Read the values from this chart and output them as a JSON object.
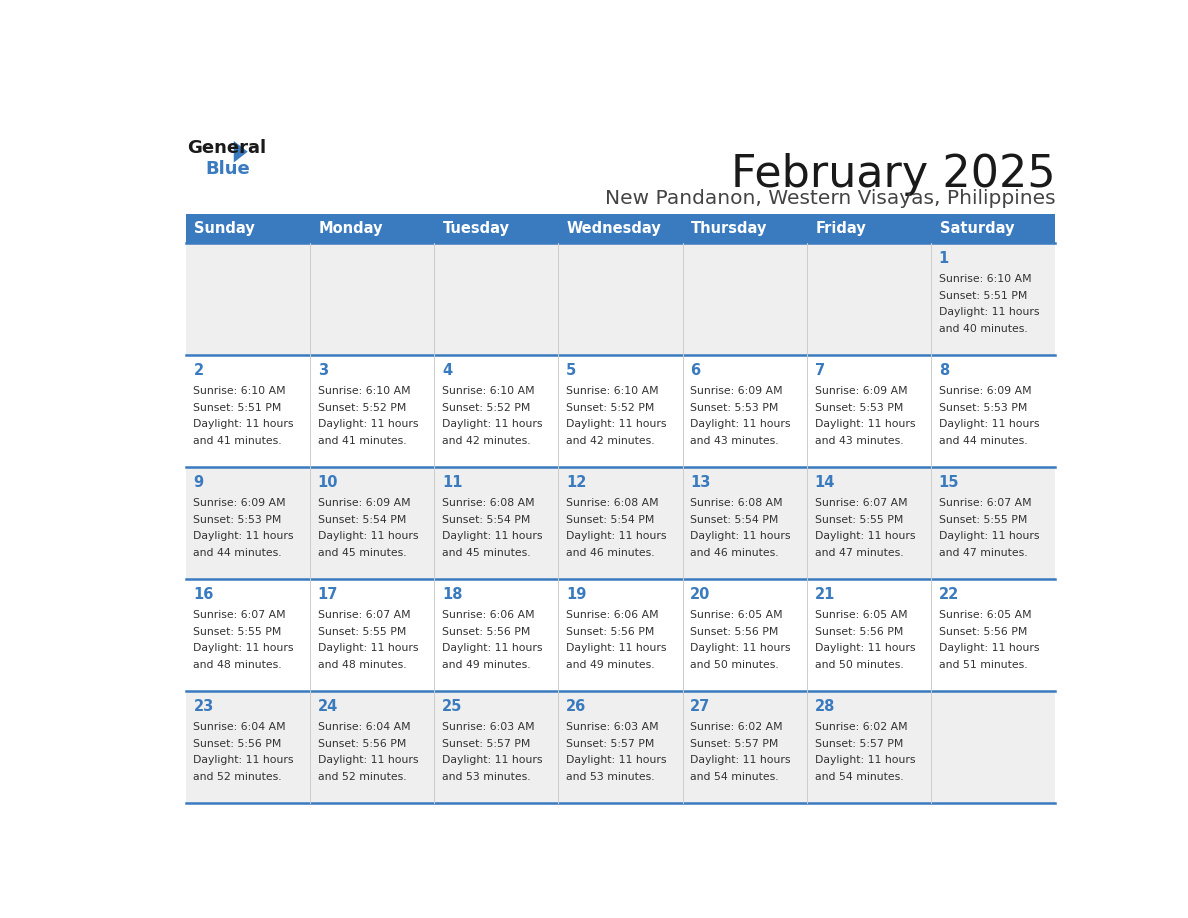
{
  "title": "February 2025",
  "subtitle": "New Pandanon, Western Visayas, Philippines",
  "days_of_week": [
    "Sunday",
    "Monday",
    "Tuesday",
    "Wednesday",
    "Thursday",
    "Friday",
    "Saturday"
  ],
  "header_bg": "#3a7abf",
  "header_text": "#ffffff",
  "row_bg_light": "#efefef",
  "row_bg_white": "#ffffff",
  "cell_text_color": "#333333",
  "day_number_color": "#3a7abf",
  "border_color": "#3a7abf",
  "figsize": [
    11.88,
    9.18
  ],
  "dpi": 100,
  "calendar_data": [
    [
      null,
      null,
      null,
      null,
      null,
      null,
      {
        "day": 1,
        "sunrise": "6:10 AM",
        "sunset": "5:51 PM",
        "daylight_h": "Daylight: 11 hours",
        "daylight_m": "and 40 minutes."
      }
    ],
    [
      {
        "day": 2,
        "sunrise": "6:10 AM",
        "sunset": "5:51 PM",
        "daylight_h": "Daylight: 11 hours",
        "daylight_m": "and 41 minutes."
      },
      {
        "day": 3,
        "sunrise": "6:10 AM",
        "sunset": "5:52 PM",
        "daylight_h": "Daylight: 11 hours",
        "daylight_m": "and 41 minutes."
      },
      {
        "day": 4,
        "sunrise": "6:10 AM",
        "sunset": "5:52 PM",
        "daylight_h": "Daylight: 11 hours",
        "daylight_m": "and 42 minutes."
      },
      {
        "day": 5,
        "sunrise": "6:10 AM",
        "sunset": "5:52 PM",
        "daylight_h": "Daylight: 11 hours",
        "daylight_m": "and 42 minutes."
      },
      {
        "day": 6,
        "sunrise": "6:09 AM",
        "sunset": "5:53 PM",
        "daylight_h": "Daylight: 11 hours",
        "daylight_m": "and 43 minutes."
      },
      {
        "day": 7,
        "sunrise": "6:09 AM",
        "sunset": "5:53 PM",
        "daylight_h": "Daylight: 11 hours",
        "daylight_m": "and 43 minutes."
      },
      {
        "day": 8,
        "sunrise": "6:09 AM",
        "sunset": "5:53 PM",
        "daylight_h": "Daylight: 11 hours",
        "daylight_m": "and 44 minutes."
      }
    ],
    [
      {
        "day": 9,
        "sunrise": "6:09 AM",
        "sunset": "5:53 PM",
        "daylight_h": "Daylight: 11 hours",
        "daylight_m": "and 44 minutes."
      },
      {
        "day": 10,
        "sunrise": "6:09 AM",
        "sunset": "5:54 PM",
        "daylight_h": "Daylight: 11 hours",
        "daylight_m": "and 45 minutes."
      },
      {
        "day": 11,
        "sunrise": "6:08 AM",
        "sunset": "5:54 PM",
        "daylight_h": "Daylight: 11 hours",
        "daylight_m": "and 45 minutes."
      },
      {
        "day": 12,
        "sunrise": "6:08 AM",
        "sunset": "5:54 PM",
        "daylight_h": "Daylight: 11 hours",
        "daylight_m": "and 46 minutes."
      },
      {
        "day": 13,
        "sunrise": "6:08 AM",
        "sunset": "5:54 PM",
        "daylight_h": "Daylight: 11 hours",
        "daylight_m": "and 46 minutes."
      },
      {
        "day": 14,
        "sunrise": "6:07 AM",
        "sunset": "5:55 PM",
        "daylight_h": "Daylight: 11 hours",
        "daylight_m": "and 47 minutes."
      },
      {
        "day": 15,
        "sunrise": "6:07 AM",
        "sunset": "5:55 PM",
        "daylight_h": "Daylight: 11 hours",
        "daylight_m": "and 47 minutes."
      }
    ],
    [
      {
        "day": 16,
        "sunrise": "6:07 AM",
        "sunset": "5:55 PM",
        "daylight_h": "Daylight: 11 hours",
        "daylight_m": "and 48 minutes."
      },
      {
        "day": 17,
        "sunrise": "6:07 AM",
        "sunset": "5:55 PM",
        "daylight_h": "Daylight: 11 hours",
        "daylight_m": "and 48 minutes."
      },
      {
        "day": 18,
        "sunrise": "6:06 AM",
        "sunset": "5:56 PM",
        "daylight_h": "Daylight: 11 hours",
        "daylight_m": "and 49 minutes."
      },
      {
        "day": 19,
        "sunrise": "6:06 AM",
        "sunset": "5:56 PM",
        "daylight_h": "Daylight: 11 hours",
        "daylight_m": "and 49 minutes."
      },
      {
        "day": 20,
        "sunrise": "6:05 AM",
        "sunset": "5:56 PM",
        "daylight_h": "Daylight: 11 hours",
        "daylight_m": "and 50 minutes."
      },
      {
        "day": 21,
        "sunrise": "6:05 AM",
        "sunset": "5:56 PM",
        "daylight_h": "Daylight: 11 hours",
        "daylight_m": "and 50 minutes."
      },
      {
        "day": 22,
        "sunrise": "6:05 AM",
        "sunset": "5:56 PM",
        "daylight_h": "Daylight: 11 hours",
        "daylight_m": "and 51 minutes."
      }
    ],
    [
      {
        "day": 23,
        "sunrise": "6:04 AM",
        "sunset": "5:56 PM",
        "daylight_h": "Daylight: 11 hours",
        "daylight_m": "and 52 minutes."
      },
      {
        "day": 24,
        "sunrise": "6:04 AM",
        "sunset": "5:56 PM",
        "daylight_h": "Daylight: 11 hours",
        "daylight_m": "and 52 minutes."
      },
      {
        "day": 25,
        "sunrise": "6:03 AM",
        "sunset": "5:57 PM",
        "daylight_h": "Daylight: 11 hours",
        "daylight_m": "and 53 minutes."
      },
      {
        "day": 26,
        "sunrise": "6:03 AM",
        "sunset": "5:57 PM",
        "daylight_h": "Daylight: 11 hours",
        "daylight_m": "and 53 minutes."
      },
      {
        "day": 27,
        "sunrise": "6:02 AM",
        "sunset": "5:57 PM",
        "daylight_h": "Daylight: 11 hours",
        "daylight_m": "and 54 minutes."
      },
      {
        "day": 28,
        "sunrise": "6:02 AM",
        "sunset": "5:57 PM",
        "daylight_h": "Daylight: 11 hours",
        "daylight_m": "and 54 minutes."
      },
      null
    ]
  ]
}
